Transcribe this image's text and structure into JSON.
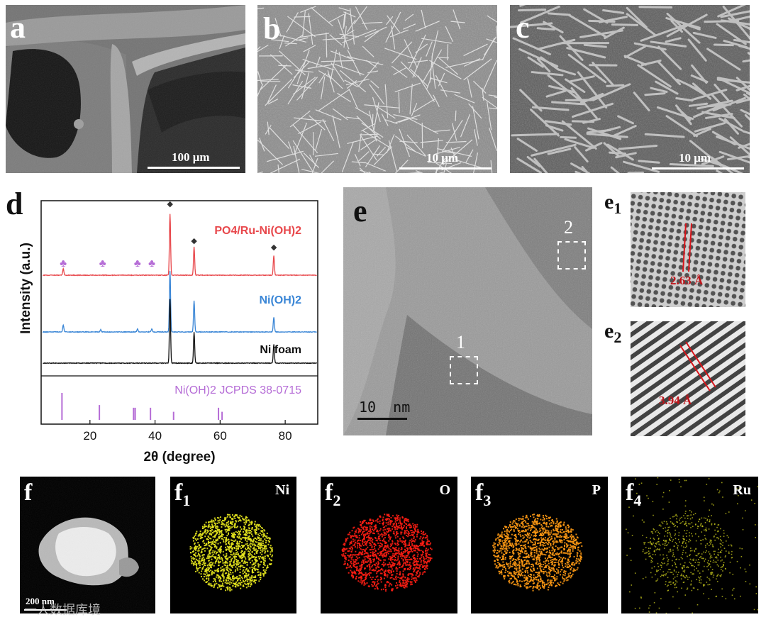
{
  "panels": {
    "a": {
      "label": "a",
      "scale": "100 μm"
    },
    "b": {
      "label": "b",
      "scale": "10 μm"
    },
    "c": {
      "label": "c",
      "scale": "10 μm"
    },
    "d": {
      "label": "d"
    },
    "e": {
      "label": "e",
      "scale": "10  nm",
      "box1": "1",
      "box2": "2"
    },
    "e1": {
      "label": "e",
      "sub": "1",
      "spacing": "2.63 Å"
    },
    "e2": {
      "label": "e",
      "sub": "2",
      "spacing": "3.94 Å"
    },
    "f": {
      "label": "f",
      "scale": "200 nm"
    },
    "f1": {
      "label": "f",
      "sub": "1",
      "element": "Ni",
      "color": "#e6e61e"
    },
    "f2": {
      "label": "f",
      "sub": "2",
      "element": "O",
      "color": "#ff1e14"
    },
    "f3": {
      "label": "f",
      "sub": "3",
      "element": "P",
      "color": "#ff9a14"
    },
    "f4": {
      "label": "f",
      "sub": "4",
      "element": "Ru",
      "color": "#c8c81e"
    }
  },
  "watermark": "一人数据库境",
  "chart_data": {
    "type": "line",
    "xlabel": "2θ (degree)",
    "ylabel": "Intensity (a.u.)",
    "xlim": [
      5,
      90
    ],
    "xticks": [
      20,
      40,
      60,
      80
    ],
    "series": [
      {
        "name": "PO4/Ru-Ni(OH)2",
        "color": "#e8484c",
        "offset": 2,
        "peaks": [
          [
            11.8,
            0.09
          ],
          [
            44.6,
            0.82
          ],
          [
            52.0,
            0.38
          ],
          [
            76.5,
            0.26
          ]
        ]
      },
      {
        "name": "Ni(OH)2",
        "color": "#3a86d6",
        "offset": 1,
        "peaks": [
          [
            11.8,
            0.09
          ],
          [
            23.3,
            0.03
          ],
          [
            34.6,
            0.04
          ],
          [
            39.0,
            0.04
          ],
          [
            44.6,
            0.82
          ],
          [
            52.0,
            0.42
          ],
          [
            76.5,
            0.2
          ]
        ]
      },
      {
        "name": "Ni foam",
        "color": "#111111",
        "offset": 0,
        "peaks": [
          [
            44.6,
            0.86
          ],
          [
            52.0,
            0.42
          ],
          [
            76.5,
            0.25
          ]
        ]
      }
    ],
    "reference": {
      "name": "Ni(OH)2 JCPDS 38-0715",
      "color": "#b56cd6",
      "lines": [
        [
          11.4,
          1.0
        ],
        [
          22.9,
          0.55
        ],
        [
          33.4,
          0.45
        ],
        [
          33.9,
          0.45
        ],
        [
          38.6,
          0.45
        ],
        [
          45.7,
          0.3
        ],
        [
          59.5,
          0.45
        ],
        [
          60.6,
          0.3
        ]
      ]
    },
    "markers": {
      "club_symbol": "♣",
      "club_color": "#b56cd6",
      "club_positions": [
        11.8,
        23.9,
        34.6,
        39.0
      ],
      "diamond_symbol": "◆",
      "diamond_color": "#333333",
      "diamond_positions": [
        44.6,
        52.0,
        76.5
      ]
    }
  }
}
